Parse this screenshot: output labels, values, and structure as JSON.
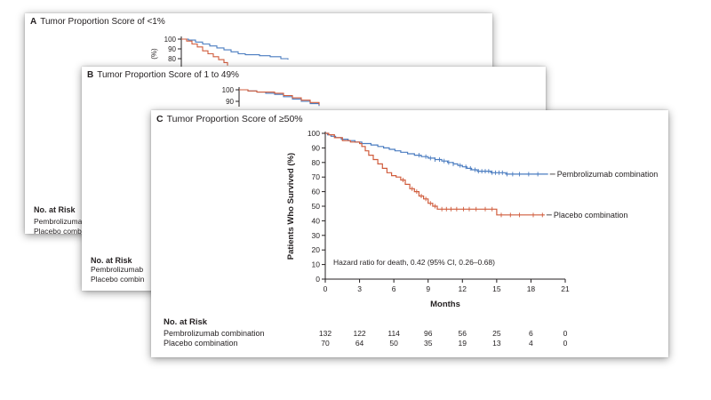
{
  "panels": [
    {
      "letter": "A",
      "title": "Tumor Proportion Score of <1%",
      "risk_heading": "No. at Risk",
      "risk_labels": [
        "Pembrolizuma",
        "Placebo combina"
      ]
    },
    {
      "letter": "B",
      "title": "Tumor Proportion Score of 1 to 49%",
      "risk_heading": "No. at Risk",
      "risk_labels": [
        "Pembrolizumab",
        "Placebo combin"
      ]
    },
    {
      "letter": "C",
      "title": "Tumor Proportion Score of ≥50%",
      "risk_heading": "No. at Risk",
      "risk_labels": [
        "Pembrolizumab combination",
        "Placebo combination"
      ]
    }
  ],
  "colors": {
    "pembrolizumab": "#4a7cc0",
    "placebo": "#d05c3c",
    "axis": "#231f20"
  },
  "chart_data": [
    {
      "type": "line",
      "panel": "A",
      "yticks": [
        80,
        90,
        100
      ],
      "ylabel": "(%)",
      "series": [
        {
          "name": "",
          "color_key": "pembrolizumab",
          "points": [
            [
              0,
              100
            ],
            [
              0.4,
              99
            ],
            [
              0.8,
              97
            ],
            [
              1.2,
              95
            ],
            [
              1.6,
              93
            ],
            [
              2.0,
              91
            ],
            [
              2.4,
              89
            ],
            [
              2.8,
              87
            ],
            [
              3.2,
              85
            ],
            [
              3.6,
              84
            ],
            [
              4.4,
              83
            ],
            [
              5.0,
              82
            ],
            [
              5.6,
              80
            ],
            [
              6.0,
              79
            ]
          ]
        },
        {
          "name": "",
          "color_key": "placebo",
          "points": [
            [
              0,
              100
            ],
            [
              0.3,
              98
            ],
            [
              0.6,
              95
            ],
            [
              0.9,
              92
            ],
            [
              1.2,
              88
            ],
            [
              1.5,
              85
            ],
            [
              1.8,
              82
            ],
            [
              2.1,
              79
            ],
            [
              2.4,
              76
            ],
            [
              2.6,
              73
            ]
          ]
        }
      ]
    },
    {
      "type": "line",
      "panel": "B",
      "yticks": [
        90,
        100
      ],
      "ylabel": "",
      "series": [
        {
          "name": "",
          "color_key": "pembrolizumab",
          "points": [
            [
              0,
              100
            ],
            [
              0.5,
              99
            ],
            [
              1.0,
              98
            ],
            [
              1.5,
              97
            ],
            [
              2.0,
              96
            ],
            [
              2.5,
              94
            ],
            [
              3.0,
              92
            ],
            [
              3.5,
              90
            ],
            [
              4.0,
              88
            ],
            [
              4.5,
              86
            ]
          ]
        },
        {
          "name": "",
          "color_key": "placebo",
          "points": [
            [
              0,
              100
            ],
            [
              0.5,
              99
            ],
            [
              1.0,
              98
            ],
            [
              1.5,
              98
            ],
            [
              2.0,
              97
            ],
            [
              2.5,
              95
            ],
            [
              3.0,
              93
            ],
            [
              3.5,
              91
            ],
            [
              4.0,
              89
            ],
            [
              4.5,
              87
            ]
          ]
        }
      ]
    },
    {
      "type": "line",
      "panel": "C",
      "xlabel": "Months",
      "ylabel": "Patients Who Survived (%)",
      "xlim": [
        0,
        21
      ],
      "ylim": [
        0,
        100
      ],
      "xticks": [
        0,
        3,
        6,
        9,
        12,
        15,
        18,
        21
      ],
      "yticks": [
        0,
        10,
        20,
        30,
        40,
        50,
        60,
        70,
        80,
        90,
        100
      ],
      "annotation": "Hazard ratio for death, 0.42 (95% CI, 0.26–0.68)",
      "series": [
        {
          "name": "Pembrolizumab combination",
          "color_key": "pembrolizumab",
          "points": [
            [
              0,
              100
            ],
            [
              0.2,
              99
            ],
            [
              0.5,
              98
            ],
            [
              0.9,
              97
            ],
            [
              1.4,
              96
            ],
            [
              2.0,
              95
            ],
            [
              2.6,
              94
            ],
            [
              3.2,
              93
            ],
            [
              4.0,
              92
            ],
            [
              4.6,
              91
            ],
            [
              5.1,
              90
            ],
            [
              5.6,
              89
            ],
            [
              6.1,
              88
            ],
            [
              6.6,
              87
            ],
            [
              7.2,
              86
            ],
            [
              7.8,
              85
            ],
            [
              8.4,
              84
            ],
            [
              9.0,
              83
            ],
            [
              9.6,
              82
            ],
            [
              10.2,
              81
            ],
            [
              10.7,
              80
            ],
            [
              11.2,
              79
            ],
            [
              11.6,
              78
            ],
            [
              12.0,
              77
            ],
            [
              12.4,
              76
            ],
            [
              12.8,
              75
            ],
            [
              13.3,
              74
            ],
            [
              14.5,
              73
            ],
            [
              15.8,
              72
            ],
            [
              19.5,
              72
            ]
          ],
          "censor_marks": [
            8.2,
            8.8,
            9.2,
            9.6,
            10.0,
            10.4,
            10.8,
            11.2,
            11.8,
            12.3,
            12.7,
            13.1,
            13.4,
            13.7,
            14.0,
            14.3,
            14.6,
            14.9,
            15.2,
            15.5,
            15.9,
            16.4,
            17.0,
            17.8,
            18.6
          ]
        },
        {
          "name": "Placebo combination",
          "color_key": "placebo",
          "points": [
            [
              0,
              100
            ],
            [
              0.3,
              99
            ],
            [
              0.8,
              97
            ],
            [
              1.5,
              95
            ],
            [
              2.2,
              94
            ],
            [
              3.0,
              93
            ],
            [
              3.2,
              91
            ],
            [
              3.5,
              88
            ],
            [
              3.8,
              85
            ],
            [
              4.2,
              82
            ],
            [
              4.6,
              79
            ],
            [
              5.0,
              76
            ],
            [
              5.4,
              73
            ],
            [
              5.8,
              71
            ],
            [
              6.2,
              70
            ],
            [
              6.6,
              68
            ],
            [
              7.0,
              65
            ],
            [
              7.4,
              62
            ],
            [
              7.8,
              60
            ],
            [
              8.2,
              57
            ],
            [
              8.6,
              55
            ],
            [
              9.0,
              52
            ],
            [
              9.4,
              50
            ],
            [
              9.8,
              48
            ],
            [
              12.0,
              48
            ],
            [
              14.5,
              48
            ],
            [
              15.0,
              44
            ],
            [
              19.2,
              44
            ]
          ],
          "censor_marks": [
            6.8,
            7.6,
            8.0,
            8.4,
            8.8,
            9.2,
            9.6,
            10.2,
            10.6,
            11.0,
            11.5,
            12.1,
            12.6,
            13.2,
            14.0,
            14.6,
            15.4,
            16.2,
            17.0,
            18.2,
            19.0
          ]
        }
      ],
      "risk_table": {
        "heading": "No. at Risk",
        "rows": [
          {
            "label": "Pembrolizumab combination",
            "values": [
              132,
              122,
              114,
              96,
              56,
              25,
              6,
              0
            ]
          },
          {
            "label": "Placebo combination",
            "values": [
              70,
              64,
              50,
              35,
              19,
              13,
              4,
              0
            ]
          }
        ]
      }
    }
  ]
}
